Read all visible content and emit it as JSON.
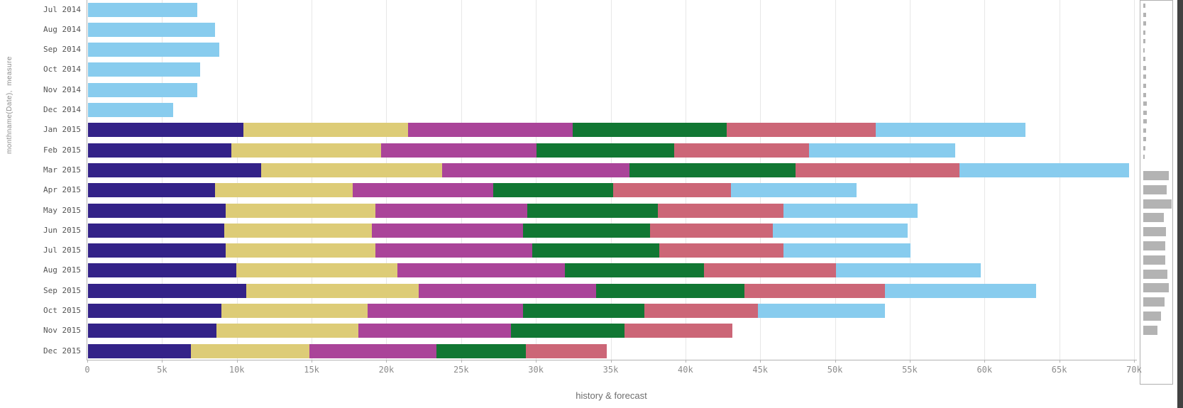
{
  "chart": {
    "y_axis_title": "monthname(Date),  measure",
    "x_axis_title": "history & forecast",
    "x_tick_labels": [
      "0",
      "5k",
      "10k",
      "15k",
      "20k",
      "25k",
      "30k",
      "35k",
      "40k",
      "45k",
      "50k",
      "55k",
      "60k",
      "65k",
      "70k"
    ]
  },
  "chart_data": {
    "type": "bar",
    "orientation": "horizontal",
    "stacked": true,
    "title": "",
    "xlabel": "history & forecast",
    "ylabel": "monthname(Date), measure",
    "xlim": [
      0,
      70000
    ],
    "grid": true,
    "legend": false,
    "categories": [
      "Jul 2014",
      "Aug 2014",
      "Sep 2014",
      "Oct 2014",
      "Nov 2014",
      "Dec 2014",
      "Jan 2015",
      "Feb 2015",
      "Mar 2015",
      "Apr 2015",
      "May 2015",
      "Jun 2015",
      "Jul 2015",
      "Aug 2015",
      "Sep 2015",
      "Oct 2015",
      "Nov 2015",
      "Dec 2015"
    ],
    "series": [
      {
        "name": "segment-1-indigo",
        "color": "#332288",
        "values": [
          0,
          0,
          0,
          0,
          0,
          0,
          10400,
          9600,
          11600,
          8500,
          9200,
          9100,
          9200,
          9900,
          10600,
          8900,
          8600,
          6900
        ]
      },
      {
        "name": "segment-2-sand",
        "color": "#DDCC77",
        "values": [
          0,
          0,
          0,
          0,
          0,
          0,
          11000,
          10000,
          12100,
          9200,
          10000,
          9900,
          10000,
          10800,
          11500,
          9800,
          9500,
          7900
        ]
      },
      {
        "name": "segment-3-purple",
        "color": "#AA4499",
        "values": [
          0,
          0,
          0,
          0,
          0,
          0,
          11000,
          10400,
          12500,
          9400,
          10200,
          10100,
          10500,
          11200,
          11900,
          10400,
          10200,
          8500
        ]
      },
      {
        "name": "segment-4-green",
        "color": "#117733",
        "values": [
          0,
          0,
          0,
          0,
          0,
          0,
          10300,
          9200,
          11100,
          8000,
          8700,
          8500,
          8500,
          9300,
          9900,
          8100,
          7600,
          6000
        ]
      },
      {
        "name": "segment-5-rose",
        "color": "#CC6677",
        "values": [
          0,
          0,
          0,
          0,
          0,
          0,
          10000,
          9000,
          11000,
          7900,
          8400,
          8200,
          8300,
          8800,
          9400,
          7600,
          7200,
          5400
        ]
      },
      {
        "name": "segment-6-cyan",
        "color": "#88CCEE",
        "values": [
          7300,
          8500,
          8800,
          7500,
          7300,
          5700,
          10000,
          9800,
          11300,
          8400,
          9000,
          9000,
          8500,
          9700,
          10100,
          8500,
          0,
          0
        ]
      }
    ]
  },
  "navigator": {
    "dash_widths": [
      3,
      4,
      4,
      3,
      3,
      2,
      3,
      4,
      4,
      4,
      4,
      5,
      5,
      5,
      4,
      4,
      3,
      2
    ],
    "mini_bar_month_count": 12,
    "thumb_color": "#b3b3b3"
  },
  "colors": {
    "axis_line": "#b3b3b3",
    "gridline": "#e7e7e7",
    "tick_text": "#8c8c8c",
    "category_text": "#545454",
    "panel_edge": "#424242"
  }
}
